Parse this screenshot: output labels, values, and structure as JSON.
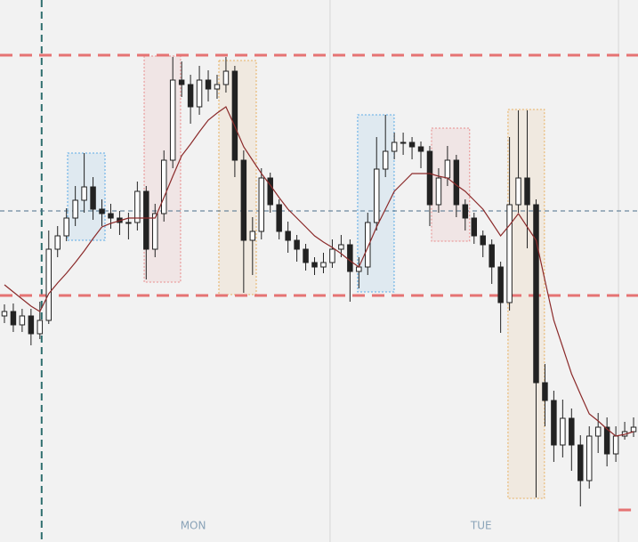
{
  "chart_data": {
    "type": "candlestick",
    "xlim": [
      -0.5,
      71.5
    ],
    "ylim": [
      0,
      609
    ],
    "xticks": [
      {
        "value": 21.3,
        "label": "MON"
      },
      {
        "value": 53.8,
        "label": "TUE"
      }
    ],
    "vlines": [
      {
        "value": 4.2,
        "color": "#2f6f6f",
        "dashed": true
      },
      {
        "value": 36.75,
        "color": "#d6d6d6",
        "dashed": false
      },
      {
        "value": 69.3,
        "color": "#d6d6d6",
        "dashed": false
      }
    ],
    "levels": [
      {
        "value": 547,
        "color": "#e57373",
        "from": -0.5
      },
      {
        "value": 277,
        "color": "#e57373",
        "from": -0.5
      },
      {
        "value": 36,
        "color": "#e57373",
        "from": 69.3
      },
      {
        "value": 372,
        "color": "#4a6f8a",
        "from": -0.5
      }
    ],
    "zones": [
      {
        "x": [
          7.13,
          11.35
        ],
        "y": [
          339,
          437
        ],
        "color": "#5aa9e6"
      },
      {
        "x": [
          15.77,
          19.88
        ],
        "y": [
          292,
          546
        ],
        "color": "#e88a8a"
      },
      {
        "x": [
          24.2,
          28.42
        ],
        "y": [
          278,
          541
        ],
        "color": "#e8b060"
      },
      {
        "x": [
          39.86,
          43.98
        ],
        "y": [
          281,
          480
        ],
        "color": "#5aa9e6"
      },
      {
        "x": [
          48.2,
          52.5
        ],
        "y": [
          338,
          465
        ],
        "color": "#e88a8a"
      },
      {
        "x": [
          56.83,
          60.94
        ],
        "y": [
          49,
          486
        ],
        "color": "#e8b060"
      }
    ],
    "up_color": "#ffffff",
    "down_color": "#222222",
    "ma_color": "#8b2a2a",
    "open": [
      254,
      259,
      244,
      254,
      234,
      249,
      329,
      344,
      364,
      384,
      399,
      374,
      369,
      364,
      359,
      359,
      394,
      329,
      369,
      429,
      519,
      514,
      489,
      519,
      509,
      514,
      529,
      429,
      339,
      349,
      409,
      379,
      349,
      339,
      329,
      314,
      309,
      314,
      329,
      334,
      304,
      309,
      359,
      419,
      439,
      449,
      449,
      444,
      439,
      379,
      409,
      429,
      379,
      364,
      344,
      334,
      309,
      269,
      379,
      409,
      379,
      179,
      159,
      109,
      139,
      109,
      69,
      119,
      129,
      99,
      119,
      124
    ],
    "high": [
      267,
      268,
      262,
      262,
      270,
      350,
      355,
      375,
      400,
      437,
      410,
      385,
      380,
      372,
      370,
      405,
      400,
      380,
      440,
      545,
      540,
      525,
      535,
      530,
      525,
      545,
      535,
      440,
      365,
      420,
      415,
      385,
      360,
      345,
      335,
      320,
      325,
      340,
      345,
      340,
      320,
      370,
      455,
      480,
      460,
      460,
      455,
      450,
      445,
      420,
      445,
      435,
      385,
      370,
      350,
      340,
      315,
      455,
      485,
      485,
      385,
      200,
      170,
      160,
      150,
      120,
      130,
      145,
      140,
      130,
      135,
      140
    ],
    "low": [
      246,
      236,
      236,
      221,
      228,
      245,
      320,
      338,
      355,
      370,
      362,
      355,
      352,
      345,
      340,
      350,
      295,
      320,
      360,
      420,
      500,
      470,
      480,
      495,
      498,
      505,
      410,
      280,
      300,
      340,
      370,
      340,
      325,
      315,
      305,
      300,
      302,
      308,
      320,
      270,
      285,
      300,
      350,
      410,
      430,
      435,
      430,
      420,
      355,
      370,
      400,
      365,
      350,
      335,
      320,
      290,
      235,
      260,
      370,
      330,
      50,
      130,
      90,
      95,
      80,
      40,
      60,
      100,
      85,
      90,
      115,
      118
    ],
    "close": [
      259,
      244,
      254,
      234,
      249,
      329,
      344,
      364,
      384,
      399,
      374,
      369,
      364,
      359,
      359,
      394,
      329,
      369,
      429,
      519,
      514,
      489,
      519,
      509,
      514,
      529,
      429,
      339,
      349,
      409,
      379,
      349,
      339,
      329,
      314,
      309,
      314,
      329,
      334,
      304,
      309,
      359,
      419,
      439,
      449,
      449,
      444,
      439,
      379,
      409,
      429,
      379,
      364,
      344,
      334,
      309,
      269,
      379,
      409,
      379,
      179,
      159,
      109,
      139,
      109,
      69,
      119,
      129,
      99,
      119,
      124,
      129
    ],
    "ma": [
      289,
      281,
      273,
      265,
      259,
      279,
      291,
      302,
      314,
      327,
      341,
      354,
      358,
      361,
      364,
      364,
      364,
      364,
      387,
      411,
      434,
      447,
      461,
      474,
      482,
      489,
      467,
      444,
      429,
      414,
      401,
      387,
      374,
      364,
      354,
      344,
      337,
      331,
      324,
      316,
      309,
      331,
      354,
      374,
      394,
      404,
      414,
      414,
      414,
      411,
      409,
      401,
      394,
      384,
      374,
      359,
      344,
      356,
      369,
      354,
      339,
      294,
      249,
      219,
      189,
      166,
      144,
      136,
      127,
      119,
      121,
      124
    ]
  }
}
